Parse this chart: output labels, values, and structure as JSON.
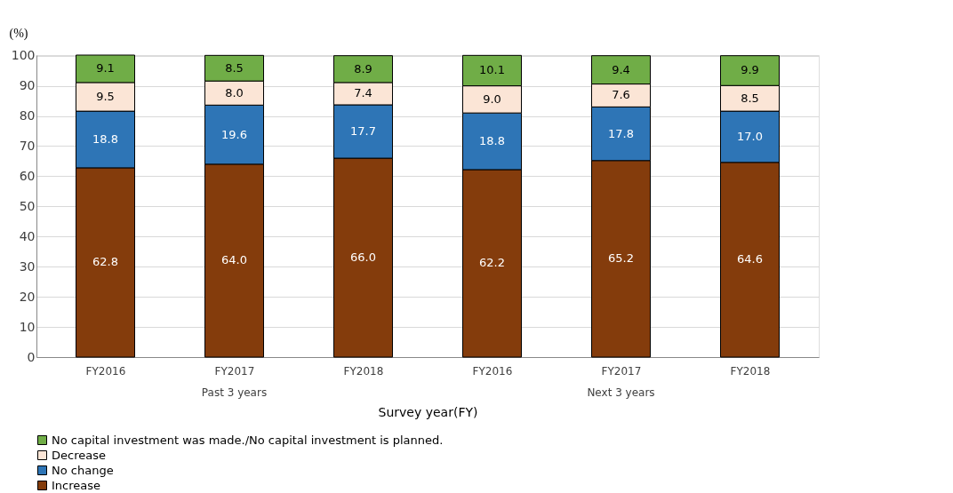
{
  "chart_data": {
    "type": "bar",
    "stacked": true,
    "ylabel": "(%)",
    "xlabel": "Survey year(FY)",
    "categories": [
      "FY2016",
      "FY2017",
      "FY2018",
      "FY2016",
      "FY2017",
      "FY2018"
    ],
    "series": [
      {
        "name": "Increase",
        "color": "#843c0c",
        "values": [
          62.8,
          64.0,
          66.0,
          62.2,
          65.2,
          64.6
        ],
        "value_labels": [
          "62.8",
          "64.0",
          "66.0",
          "62.2",
          "65.2",
          "64.6"
        ]
      },
      {
        "name": "No change",
        "color": "#2e75b6",
        "values": [
          18.8,
          19.6,
          17.7,
          18.8,
          17.8,
          17.0
        ],
        "value_labels": [
          "18.8",
          "19.6",
          "17.7",
          "18.8",
          "17.8",
          "17.0"
        ]
      },
      {
        "name": "Decrease",
        "color": "#fbe5d6",
        "values": [
          9.5,
          8.0,
          7.4,
          9.0,
          7.6,
          8.5
        ],
        "value_labels": [
          "9.5",
          "8.0",
          "7.4",
          "9.0",
          "7.6",
          "8.5"
        ]
      },
      {
        "name": "No capital investment was made./No capital investment is planned.",
        "color": "#70ad47",
        "values": [
          9.1,
          8.5,
          8.9,
          10.1,
          9.4,
          9.9
        ]
      }
    ],
    "ylim": [
      0,
      100.2
    ],
    "yticks": [
      0,
      10,
      20,
      30,
      40,
      50,
      60,
      70,
      80,
      90,
      100
    ],
    "grid": "y",
    "legend": "bottom",
    "data_labels": true,
    "annotations": [
      "Past 3 years",
      "Next 3 years"
    ]
  }
}
